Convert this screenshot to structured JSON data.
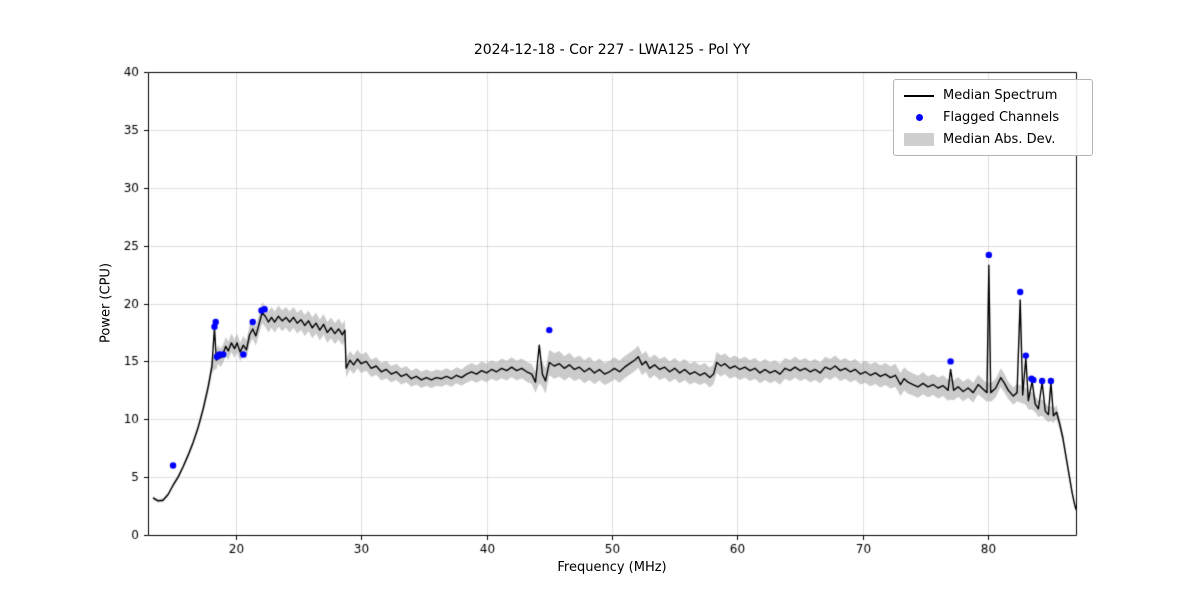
{
  "chart_data": {
    "type": "line",
    "title": "2024-12-18 - Cor 227 - LWA125 - Pol YY",
    "xlabel": "Frequency (MHz)",
    "ylabel": "Power (CPU)",
    "xlim": [
      13,
      87
    ],
    "ylim": [
      0,
      40
    ],
    "xticks": [
      20,
      30,
      40,
      50,
      60,
      70,
      80
    ],
    "yticks": [
      0,
      5,
      10,
      15,
      20,
      25,
      30,
      35,
      40
    ],
    "grid": true,
    "background": "#ffffff",
    "line_color": "#000000",
    "marker_color": "#0000ff",
    "band_fill": "rgba(160,160,160,0.55)",
    "legend": {
      "position": "upper right",
      "entries": [
        {
          "label": "Median Spectrum",
          "type": "line",
          "color": "#000000"
        },
        {
          "label": "Flagged Channels",
          "type": "marker",
          "color": "#0000ff"
        },
        {
          "label": "Median Abs. Dev.",
          "type": "band",
          "color": "#cfcfcf"
        }
      ]
    },
    "series": [
      {
        "name": "Median Spectrum",
        "point_format": "[freq_MHz, power, mad, band_center_optional]",
        "points": [
          [
            13.4,
            3.2,
            0.15
          ],
          [
            13.8,
            2.95,
            0.15
          ],
          [
            14.2,
            3.0,
            0.15
          ],
          [
            14.6,
            3.5,
            0.15
          ],
          [
            15.0,
            4.3,
            0.2
          ],
          [
            15.4,
            5.0,
            0.2
          ],
          [
            15.8,
            5.9,
            0.2
          ],
          [
            16.2,
            6.9,
            0.25
          ],
          [
            16.6,
            8.0,
            0.3
          ],
          [
            17.0,
            9.3,
            0.35
          ],
          [
            17.4,
            10.9,
            0.4
          ],
          [
            17.8,
            12.8,
            0.5
          ],
          [
            18.1,
            14.6,
            0.6
          ],
          [
            18.3,
            17.9,
            0.7,
            15.0
          ],
          [
            18.45,
            15.1,
            0.8
          ],
          [
            18.6,
            15.6,
            0.8
          ],
          [
            18.8,
            15.3,
            0.8
          ],
          [
            19.0,
            15.7,
            0.8
          ],
          [
            19.2,
            16.3,
            0.8
          ],
          [
            19.4,
            15.9,
            0.8
          ],
          [
            19.65,
            16.6,
            0.8
          ],
          [
            19.9,
            16.1,
            0.8
          ],
          [
            20.1,
            16.6,
            0.8
          ],
          [
            20.35,
            15.8,
            0.8
          ],
          [
            20.6,
            16.4,
            0.8
          ],
          [
            20.85,
            16.0,
            0.8
          ],
          [
            21.1,
            17.3,
            0.85
          ],
          [
            21.35,
            17.8,
            0.85
          ],
          [
            21.6,
            17.2,
            0.85
          ],
          [
            21.85,
            18.2,
            0.85
          ],
          [
            22.1,
            19.2,
            0.9
          ],
          [
            22.35,
            18.9,
            0.9
          ],
          [
            22.6,
            18.4,
            0.9
          ],
          [
            22.85,
            18.8,
            0.9
          ],
          [
            23.1,
            18.4,
            0.9
          ],
          [
            23.4,
            18.9,
            0.9
          ],
          [
            23.7,
            18.5,
            0.9
          ],
          [
            24.0,
            18.8,
            0.9
          ],
          [
            24.3,
            18.4,
            0.9
          ],
          [
            24.6,
            18.8,
            0.9
          ],
          [
            24.9,
            18.3,
            0.9
          ],
          [
            25.2,
            18.6,
            0.9
          ],
          [
            25.5,
            18.1,
            0.9
          ],
          [
            25.8,
            18.5,
            0.9
          ],
          [
            26.1,
            17.9,
            0.9
          ],
          [
            26.4,
            18.3,
            0.9
          ],
          [
            26.7,
            17.7,
            0.9
          ],
          [
            27.0,
            18.2,
            0.9
          ],
          [
            27.3,
            17.5,
            0.9
          ],
          [
            27.6,
            17.9,
            0.9
          ],
          [
            27.9,
            17.4,
            0.9
          ],
          [
            28.2,
            17.8,
            0.9
          ],
          [
            28.5,
            17.3,
            0.9
          ],
          [
            28.7,
            17.7,
            0.9
          ],
          [
            28.8,
            14.4,
            0.8
          ],
          [
            29.1,
            15.1,
            0.8
          ],
          [
            29.4,
            14.7,
            0.8
          ],
          [
            29.7,
            15.2,
            0.8
          ],
          [
            30.0,
            14.8,
            0.8
          ],
          [
            30.4,
            15.0,
            0.8
          ],
          [
            30.8,
            14.4,
            0.75
          ],
          [
            31.2,
            14.6,
            0.75
          ],
          [
            31.6,
            14.1,
            0.75
          ],
          [
            32.0,
            14.3,
            0.75
          ],
          [
            32.4,
            13.9,
            0.7
          ],
          [
            32.8,
            14.1,
            0.7
          ],
          [
            33.2,
            13.7,
            0.7
          ],
          [
            33.6,
            13.9,
            0.7
          ],
          [
            34.0,
            13.5,
            0.7
          ],
          [
            34.4,
            13.7,
            0.7
          ],
          [
            34.8,
            13.4,
            0.7
          ],
          [
            35.2,
            13.6,
            0.7
          ],
          [
            35.6,
            13.4,
            0.7
          ],
          [
            36.0,
            13.6,
            0.7
          ],
          [
            36.4,
            13.5,
            0.7
          ],
          [
            36.8,
            13.7,
            0.7
          ],
          [
            37.2,
            13.5,
            0.7
          ],
          [
            37.6,
            13.8,
            0.7
          ],
          [
            38.0,
            13.6,
            0.7
          ],
          [
            38.4,
            13.9,
            0.75
          ],
          [
            38.8,
            14.1,
            0.75
          ],
          [
            39.2,
            13.9,
            0.75
          ],
          [
            39.6,
            14.2,
            0.8
          ],
          [
            40.0,
            14.0,
            0.8
          ],
          [
            40.4,
            14.3,
            0.8
          ],
          [
            40.8,
            14.1,
            0.8
          ],
          [
            41.2,
            14.4,
            0.85
          ],
          [
            41.6,
            14.2,
            0.85
          ],
          [
            42.0,
            14.5,
            0.85
          ],
          [
            42.4,
            14.2,
            0.85
          ],
          [
            42.8,
            14.4,
            0.85
          ],
          [
            43.2,
            14.1,
            0.85
          ],
          [
            43.6,
            13.9,
            0.85
          ],
          [
            43.9,
            13.2,
            0.9
          ],
          [
            44.2,
            16.4,
            0.9,
            14.0
          ],
          [
            44.45,
            13.9,
            1.1
          ],
          [
            44.7,
            13.3,
            1.1
          ],
          [
            45.0,
            14.9,
            1.1
          ],
          [
            45.4,
            14.6,
            1.1
          ],
          [
            45.8,
            14.8,
            1.1
          ],
          [
            46.2,
            14.4,
            1.05
          ],
          [
            46.6,
            14.7,
            1.05
          ],
          [
            47.0,
            14.3,
            1.0
          ],
          [
            47.4,
            14.5,
            1.0
          ],
          [
            47.8,
            14.1,
            1.0
          ],
          [
            48.2,
            14.4,
            1.0
          ],
          [
            48.6,
            14.0,
            0.95
          ],
          [
            49.0,
            14.3,
            0.95
          ],
          [
            49.4,
            13.9,
            0.95
          ],
          [
            49.8,
            14.1,
            0.95
          ],
          [
            50.2,
            14.4,
            0.95
          ],
          [
            50.6,
            14.1,
            0.95
          ],
          [
            51.0,
            14.5,
            0.95
          ],
          [
            51.4,
            14.8,
            0.95
          ],
          [
            51.8,
            15.1,
            0.95
          ],
          [
            52.1,
            15.4,
            0.95
          ],
          [
            52.4,
            14.7,
            0.9
          ],
          [
            52.7,
            15.0,
            0.9
          ],
          [
            53.0,
            14.4,
            0.9
          ],
          [
            53.4,
            14.7,
            0.9
          ],
          [
            53.8,
            14.3,
            0.9
          ],
          [
            54.2,
            14.5,
            0.9
          ],
          [
            54.6,
            14.1,
            0.9
          ],
          [
            55.0,
            14.4,
            0.9
          ],
          [
            55.4,
            14.0,
            0.9
          ],
          [
            55.8,
            14.3,
            0.9
          ],
          [
            56.2,
            13.9,
            0.9
          ],
          [
            56.6,
            14.1,
            0.9
          ],
          [
            57.0,
            13.8,
            0.85
          ],
          [
            57.4,
            14.0,
            0.85
          ],
          [
            57.8,
            13.6,
            0.85
          ],
          [
            58.1,
            13.9,
            0.85
          ],
          [
            58.35,
            14.9,
            0.9
          ],
          [
            58.7,
            14.6,
            0.9
          ],
          [
            59.0,
            14.8,
            0.9
          ],
          [
            59.4,
            14.4,
            0.9
          ],
          [
            59.8,
            14.6,
            0.9
          ],
          [
            60.2,
            14.3,
            0.9
          ],
          [
            60.6,
            14.5,
            0.9
          ],
          [
            61.0,
            14.2,
            0.9
          ],
          [
            61.4,
            14.4,
            0.9
          ],
          [
            61.8,
            14.0,
            0.9
          ],
          [
            62.2,
            14.3,
            0.9
          ],
          [
            62.6,
            14.0,
            0.9
          ],
          [
            63.0,
            14.2,
            0.9
          ],
          [
            63.4,
            13.9,
            0.9
          ],
          [
            63.8,
            14.4,
            0.9
          ],
          [
            64.2,
            14.2,
            0.9
          ],
          [
            64.6,
            14.5,
            0.9
          ],
          [
            65.0,
            14.2,
            0.9
          ],
          [
            65.4,
            14.4,
            0.9
          ],
          [
            65.8,
            14.1,
            0.9
          ],
          [
            66.2,
            14.3,
            0.9
          ],
          [
            66.6,
            14.0,
            0.9
          ],
          [
            67.0,
            14.5,
            0.9
          ],
          [
            67.4,
            14.3,
            0.9
          ],
          [
            67.8,
            14.6,
            0.9
          ],
          [
            68.2,
            14.2,
            0.9
          ],
          [
            68.6,
            14.4,
            0.9
          ],
          [
            69.0,
            14.1,
            0.9
          ],
          [
            69.4,
            14.3,
            0.9
          ],
          [
            69.8,
            13.9,
            0.9
          ],
          [
            70.2,
            14.1,
            0.95
          ],
          [
            70.6,
            13.8,
            0.95
          ],
          [
            71.0,
            14.0,
            0.95
          ],
          [
            71.4,
            13.7,
            0.95
          ],
          [
            71.8,
            13.9,
            0.95
          ],
          [
            72.2,
            13.6,
            0.95
          ],
          [
            72.6,
            13.8,
            1.0
          ],
          [
            73.0,
            13.0,
            1.0
          ],
          [
            73.3,
            13.5,
            1.0
          ],
          [
            73.6,
            13.2,
            1.0
          ],
          [
            74.0,
            13.0,
            0.95
          ],
          [
            74.4,
            12.8,
            0.95
          ],
          [
            74.8,
            13.1,
            0.95
          ],
          [
            75.2,
            12.8,
            0.9
          ],
          [
            75.6,
            13.0,
            0.9
          ],
          [
            76.0,
            12.7,
            0.9
          ],
          [
            76.4,
            12.9,
            0.9
          ],
          [
            76.8,
            12.5,
            0.9
          ],
          [
            77.0,
            14.3,
            0.9,
            12.6
          ],
          [
            77.25,
            12.5,
            0.85
          ],
          [
            77.6,
            12.8,
            0.85
          ],
          [
            78.0,
            12.4,
            0.85
          ],
          [
            78.4,
            12.7,
            0.85
          ],
          [
            78.8,
            12.3,
            0.85
          ],
          [
            79.2,
            13.0,
            0.85
          ],
          [
            79.6,
            12.6,
            0.8
          ],
          [
            79.9,
            12.3,
            0.8
          ],
          [
            80.05,
            23.3,
            0.8,
            12.4
          ],
          [
            80.2,
            12.3,
            0.8
          ],
          [
            80.6,
            12.7,
            0.8
          ],
          [
            81.0,
            13.6,
            0.8
          ],
          [
            81.3,
            13.1,
            0.8
          ],
          [
            81.6,
            12.5,
            0.75
          ],
          [
            82.0,
            12.0,
            0.75
          ],
          [
            82.3,
            12.3,
            0.75
          ],
          [
            82.55,
            20.3,
            0.75,
            12.2
          ],
          [
            82.75,
            12.1,
            0.75
          ],
          [
            83.0,
            15.3,
            0.75,
            12.0
          ],
          [
            83.2,
            11.6,
            0.75
          ],
          [
            83.5,
            13.3,
            0.75,
            11.6
          ],
          [
            83.75,
            11.3,
            0.7
          ],
          [
            84.0,
            10.9,
            0.7
          ],
          [
            84.3,
            13.2,
            0.7,
            11.0
          ],
          [
            84.55,
            10.7,
            0.7
          ],
          [
            84.8,
            10.4,
            0.65
          ],
          [
            85.0,
            13.2,
            0.65,
            10.5
          ],
          [
            85.2,
            10.3,
            0.6
          ],
          [
            85.45,
            10.6,
            0.6
          ],
          [
            85.7,
            9.6,
            0.5
          ],
          [
            85.95,
            8.4,
            0.45
          ],
          [
            86.2,
            6.8,
            0.4
          ],
          [
            86.45,
            5.2,
            0.35
          ],
          [
            86.7,
            3.6,
            0.3
          ],
          [
            86.9,
            2.6,
            0.25
          ],
          [
            87.0,
            2.2,
            0.2
          ]
        ]
      },
      {
        "name": "Flagged Channels",
        "point_format": "[freq_MHz, power]",
        "points": [
          [
            15.0,
            6.0
          ],
          [
            18.3,
            18.0
          ],
          [
            18.4,
            18.4
          ],
          [
            18.5,
            15.4
          ],
          [
            18.7,
            15.6
          ],
          [
            19.0,
            15.6
          ],
          [
            20.6,
            15.6
          ],
          [
            21.35,
            18.4
          ],
          [
            22.05,
            19.4
          ],
          [
            22.3,
            19.5
          ],
          [
            45.0,
            17.7
          ],
          [
            77.0,
            15.0
          ],
          [
            80.05,
            24.2
          ],
          [
            82.55,
            21.0
          ],
          [
            83.0,
            15.5
          ],
          [
            83.45,
            13.5
          ],
          [
            83.6,
            13.4
          ],
          [
            84.3,
            13.3
          ],
          [
            85.0,
            13.3
          ]
        ]
      }
    ]
  }
}
